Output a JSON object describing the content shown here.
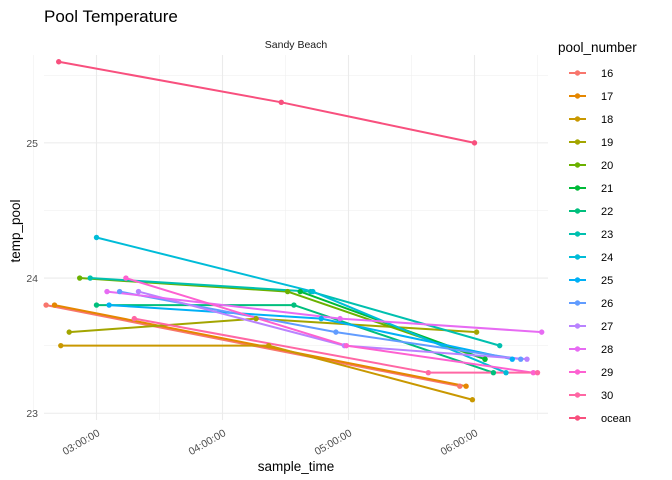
{
  "chart_data": {
    "type": "line",
    "title": "Pool Temperature",
    "facet_label": "Sandy Beach",
    "xlabel": "sample_time",
    "ylabel": "temp_pool",
    "x_unit": "time of day",
    "xlim": [
      "02:35:00",
      "06:35:00"
    ],
    "ylim": [
      22.95,
      25.65
    ],
    "x_ticks": [
      "03:00:00",
      "04:00:00",
      "05:00:00",
      "06:00:00"
    ],
    "y_ticks": [
      23,
      24,
      25
    ],
    "grid": true,
    "legend": {
      "title": "pool_number",
      "position": "right"
    },
    "series": [
      {
        "name": "16",
        "color": "#F8766D",
        "points": [
          [
            "02:36:00",
            23.8
          ],
          [
            "05:53:00",
            23.2
          ]
        ]
      },
      {
        "name": "17",
        "color": "#E58700",
        "points": [
          [
            "02:40:00",
            23.8
          ],
          [
            "05:56:00",
            23.2
          ]
        ]
      },
      {
        "name": "18",
        "color": "#C99800",
        "points": [
          [
            "02:43:00",
            23.5
          ],
          [
            "04:22:00",
            23.5
          ],
          [
            "05:59:00",
            23.1
          ]
        ]
      },
      {
        "name": "19",
        "color": "#A3A500",
        "points": [
          [
            "02:47:00",
            23.6
          ],
          [
            "04:16:00",
            23.7
          ],
          [
            "06:01:00",
            23.6
          ]
        ]
      },
      {
        "name": "20",
        "color": "#6BB100",
        "points": [
          [
            "02:52:00",
            24.0
          ],
          [
            "04:31:00",
            23.9
          ],
          [
            "06:05:00",
            23.4
          ]
        ]
      },
      {
        "name": "21",
        "color": "#00BA38",
        "points": [
          [
            "04:37:00",
            23.9
          ],
          [
            "06:05:00",
            23.4
          ]
        ]
      },
      {
        "name": "22",
        "color": "#00BF7D",
        "points": [
          [
            "03:00:00",
            23.8
          ],
          [
            "04:34:00",
            23.8
          ],
          [
            "06:09:00",
            23.3
          ]
        ]
      },
      {
        "name": "23",
        "color": "#00C0AF",
        "points": [
          [
            "02:57:00",
            24.0
          ],
          [
            "04:42:00",
            23.9
          ],
          [
            "06:12:00",
            23.5
          ]
        ]
      },
      {
        "name": "24",
        "color": "#00BCD8",
        "points": [
          [
            "03:00:00",
            24.3
          ],
          [
            "04:43:00",
            23.9
          ],
          [
            "06:15:00",
            23.3
          ]
        ]
      },
      {
        "name": "25",
        "color": "#00B0F6",
        "points": [
          [
            "03:06:00",
            23.8
          ],
          [
            "04:47:00",
            23.7
          ],
          [
            "06:18:00",
            23.4
          ]
        ]
      },
      {
        "name": "26",
        "color": "#619CFF",
        "points": [
          [
            "03:11:00",
            23.9
          ],
          [
            "04:54:00",
            23.6
          ],
          [
            "06:22:00",
            23.4
          ]
        ]
      },
      {
        "name": "27",
        "color": "#B983FF",
        "points": [
          [
            "03:20:00",
            23.9
          ],
          [
            "04:58:00",
            23.5
          ],
          [
            "06:25:00",
            23.4
          ]
        ]
      },
      {
        "name": "28",
        "color": "#E76BF3",
        "points": [
          [
            "03:05:00",
            23.9
          ],
          [
            "04:56:00",
            23.7
          ],
          [
            "06:32:00",
            23.6
          ]
        ]
      },
      {
        "name": "29",
        "color": "#FD61D1",
        "points": [
          [
            "03:14:00",
            24.0
          ],
          [
            "04:59:00",
            23.5
          ],
          [
            "06:28:00",
            23.3
          ]
        ]
      },
      {
        "name": "30",
        "color": "#FF67A4",
        "points": [
          [
            "03:18:00",
            23.7
          ],
          [
            "05:38:00",
            23.3
          ],
          [
            "06:30:00",
            23.3
          ]
        ]
      },
      {
        "name": "ocean",
        "color": "#F8507E",
        "points": [
          [
            "02:42:00",
            25.6
          ],
          [
            "04:28:00",
            25.3
          ],
          [
            "06:00:00",
            25.0
          ]
        ]
      }
    ]
  }
}
